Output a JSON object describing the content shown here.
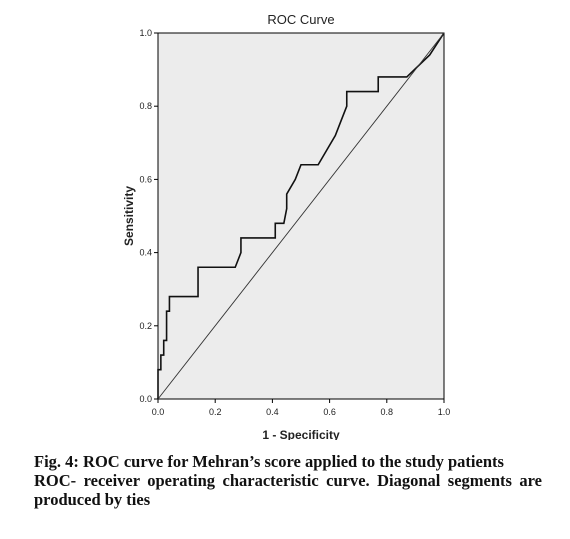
{
  "chart_data": {
    "type": "line",
    "title": "ROC Curve",
    "xlabel": "1 - Specificity",
    "ylabel": "Sensitivity",
    "xlim": [
      0,
      1
    ],
    "ylim": [
      0,
      1
    ],
    "xticks": [
      "0.0",
      "0.2",
      "0.4",
      "0.6",
      "0.8",
      "1.0"
    ],
    "yticks": [
      "0.0",
      "0.2",
      "0.4",
      "0.6",
      "0.8",
      "1.0"
    ],
    "grid": false,
    "plot_background": "#ececec",
    "series": [
      {
        "x": [
          0,
          0,
          0.01,
          0.01,
          0.02,
          0.02,
          0.03,
          0.03,
          0.04,
          0.04,
          0.05,
          0.05,
          0.14,
          0.14,
          0.27,
          0.29,
          0.29,
          0.39,
          0.41,
          0.41,
          0.44,
          0.45,
          0.45,
          0.48,
          0.5,
          0.5,
          0.56,
          0.59,
          0.62,
          0.64,
          0.66,
          0.66,
          0.71,
          0.71,
          0.77,
          0.77,
          0.82,
          0.87,
          0.95,
          1.0
        ],
        "y": [
          0,
          0.08,
          0.08,
          0.12,
          0.12,
          0.16,
          0.16,
          0.24,
          0.24,
          0.28,
          0.28,
          0.28,
          0.28,
          0.36,
          0.36,
          0.4,
          0.44,
          0.44,
          0.44,
          0.48,
          0.48,
          0.52,
          0.56,
          0.6,
          0.64,
          0.64,
          0.64,
          0.68,
          0.72,
          0.76,
          0.8,
          0.84,
          0.84,
          0.84,
          0.84,
          0.88,
          0.88,
          0.88,
          0.94,
          1.0
        ],
        "color": "#111111"
      },
      {
        "x": [
          0,
          1
        ],
        "y": [
          0,
          1
        ],
        "color": "#333333"
      }
    ]
  },
  "caption": {
    "line1": "Fig. 4: ROC curve for Mehran’s score applied to the study patients",
    "line2": "ROC- receiver operating characteristic curve. Diagonal segments are produced by ties"
  }
}
